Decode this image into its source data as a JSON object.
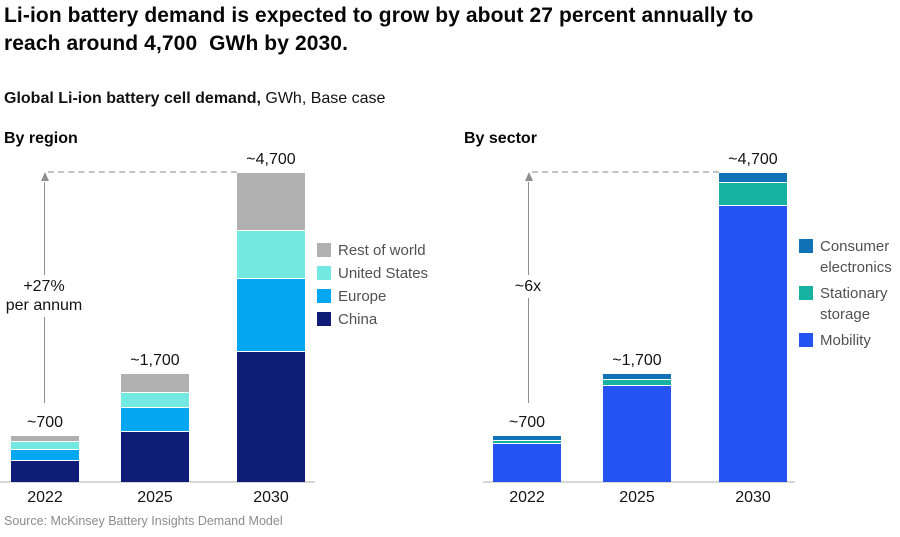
{
  "title": "Li-ion battery demand is expected to grow by about 27 percent annually to\nreach around 4,700  GWh by 2030.",
  "subtitle": {
    "bold": "Global Li-ion battery cell demand,",
    "rest": " GWh, Base case"
  },
  "source": "Source: McKinsey Battery Insights Demand Model",
  "chart_data": [
    {
      "type": "bar",
      "stacked": true,
      "panel_label": "By region",
      "unit": "GWh",
      "ylim": [
        0,
        4700
      ],
      "grid": false,
      "categories": [
        "2022",
        "2025",
        "2030"
      ],
      "total_labels": [
        "~700",
        "~1,700",
        "~4,700"
      ],
      "growth_annotation": [
        "+27%",
        "per annum"
      ],
      "series": [
        {
          "name": "China",
          "color": "#0e1e78",
          "values": [
            335,
            780,
            2000
          ]
        },
        {
          "name": "Europe",
          "color": "#06a7f2",
          "values": [
            165,
            365,
            1100
          ]
        },
        {
          "name": "United States",
          "color": "#73e9e1",
          "values": [
            120,
            230,
            730
          ]
        },
        {
          "name": "Rest of world",
          "color": "#b0b0b0",
          "values": [
            80,
            275,
            870
          ]
        }
      ],
      "legend_position": "right",
      "legend_order_top_to_bottom": [
        "Rest of world",
        "United States",
        "Europe",
        "China"
      ]
    },
    {
      "type": "bar",
      "stacked": true,
      "panel_label": "By sector",
      "unit": "GWh",
      "ylim": [
        0,
        4700
      ],
      "grid": false,
      "categories": [
        "2022",
        "2025",
        "2030"
      ],
      "total_labels": [
        "~700",
        "~1,700",
        "~4,700"
      ],
      "growth_annotation": [
        "~6x"
      ],
      "series": [
        {
          "name": "Mobility",
          "color": "#2554f2",
          "values": [
            590,
            1475,
            4220
          ]
        },
        {
          "name": "Stationary storage",
          "color": "#17b3a2",
          "values": [
            50,
            95,
            340
          ]
        },
        {
          "name": "Consumer electronics",
          "color": "#1272b8",
          "values": [
            60,
            80,
            140
          ]
        }
      ],
      "legend_position": "right",
      "legend_order_top_to_bottom": [
        "Consumer electronics",
        "Stationary storage",
        "Mobility"
      ]
    }
  ]
}
